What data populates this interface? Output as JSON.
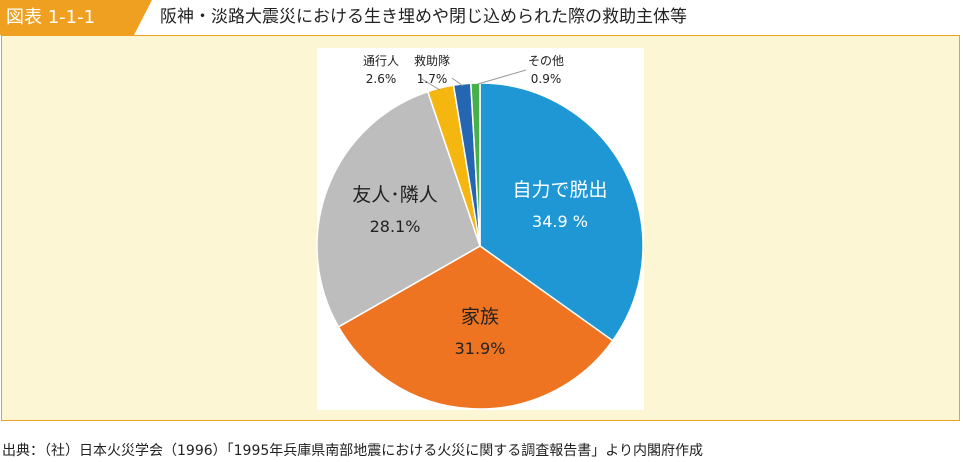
{
  "header": {
    "figure_label": "図表 1-1-1",
    "title": "阪神・淡路大震災における生き埋めや閉じ込められた際の救助主体等"
  },
  "colors": {
    "accent": "#f0a020",
    "panel_bg": "#fdf6d4"
  },
  "chart_data": {
    "type": "pie",
    "title": "",
    "slices": [
      {
        "name": "自力で脱出",
        "value": 34.9,
        "value_label": "34.9 %",
        "color": "#1f97d4",
        "label_color": "#ffffff",
        "label_position": "inside"
      },
      {
        "name": "家族",
        "value": 31.9,
        "value_label": "31.9%",
        "color": "#ee7422",
        "label_color": "#222222",
        "label_position": "inside"
      },
      {
        "name": "友人･隣人",
        "value": 28.1,
        "value_label": "28.1%",
        "color": "#bdbdbd",
        "label_color": "#222222",
        "label_position": "inside"
      },
      {
        "name": "通行人",
        "value": 2.6,
        "value_label": "2.6%",
        "color": "#f5b70f",
        "label_color": "#222222",
        "label_position": "outside"
      },
      {
        "name": "救助隊",
        "value": 1.7,
        "value_label": "1.7%",
        "color": "#2566b3",
        "label_color": "#222222",
        "label_position": "outside"
      },
      {
        "name": "その他",
        "value": 0.9,
        "value_label": "0.9%",
        "color": "#48b04a",
        "label_color": "#222222",
        "label_position": "outside"
      }
    ]
  },
  "source": "出典：（社）日本火災学会（1996）「1995年兵庫県南部地震における火災に関する調査報告書」より内閣府作成"
}
